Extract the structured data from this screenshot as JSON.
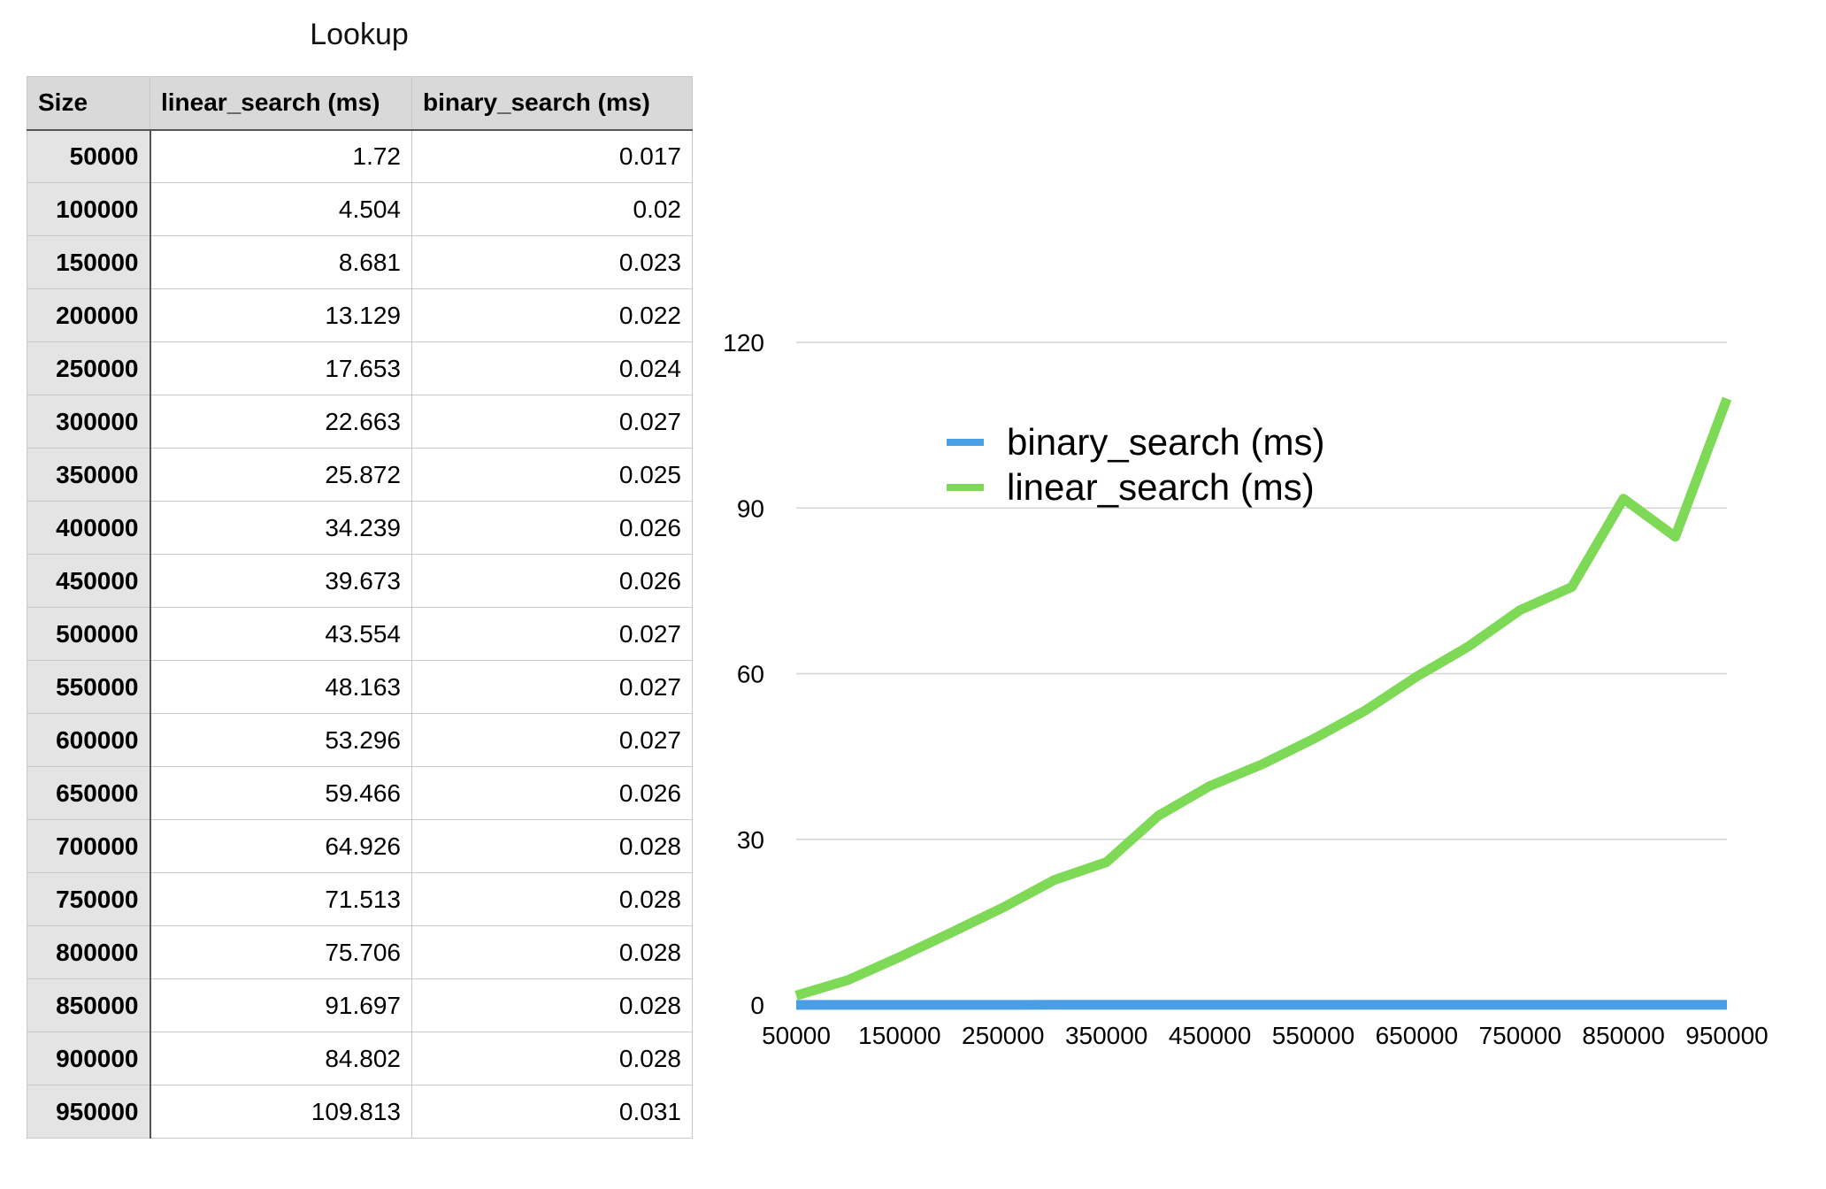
{
  "table": {
    "title": "Lookup",
    "headers": [
      "Size",
      "linear_search (ms)",
      "binary_search (ms)"
    ],
    "rows": [
      [
        "50000",
        "1.72",
        "0.017"
      ],
      [
        "100000",
        "4.504",
        "0.02"
      ],
      [
        "150000",
        "8.681",
        "0.023"
      ],
      [
        "200000",
        "13.129",
        "0.022"
      ],
      [
        "250000",
        "17.653",
        "0.024"
      ],
      [
        "300000",
        "22.663",
        "0.027"
      ],
      [
        "350000",
        "25.872",
        "0.025"
      ],
      [
        "400000",
        "34.239",
        "0.026"
      ],
      [
        "450000",
        "39.673",
        "0.026"
      ],
      [
        "500000",
        "43.554",
        "0.027"
      ],
      [
        "550000",
        "48.163",
        "0.027"
      ],
      [
        "600000",
        "53.296",
        "0.027"
      ],
      [
        "650000",
        "59.466",
        "0.026"
      ],
      [
        "700000",
        "64.926",
        "0.028"
      ],
      [
        "750000",
        "71.513",
        "0.028"
      ],
      [
        "800000",
        "75.706",
        "0.028"
      ],
      [
        "850000",
        "91.697",
        "0.028"
      ],
      [
        "900000",
        "84.802",
        "0.028"
      ],
      [
        "950000",
        "109.813",
        "0.031"
      ]
    ]
  },
  "chart_data": {
    "type": "line",
    "x": [
      50000,
      100000,
      150000,
      200000,
      250000,
      300000,
      350000,
      400000,
      450000,
      500000,
      550000,
      600000,
      650000,
      700000,
      750000,
      800000,
      850000,
      900000,
      950000
    ],
    "x_tick_labels": [
      "50000",
      "150000",
      "250000",
      "350000",
      "450000",
      "550000",
      "650000",
      "750000",
      "850000",
      "950000"
    ],
    "y_ticks": [
      0,
      30,
      60,
      90,
      120
    ],
    "ylim": [
      0,
      120
    ],
    "grid": true,
    "legend_position": "top-center",
    "series": [
      {
        "name": "binary_search (ms)",
        "color": "#4a9ee6",
        "values": [
          0.017,
          0.02,
          0.023,
          0.022,
          0.024,
          0.027,
          0.025,
          0.026,
          0.026,
          0.027,
          0.027,
          0.027,
          0.026,
          0.028,
          0.028,
          0.028,
          0.028,
          0.028,
          0.031
        ]
      },
      {
        "name": "linear_search (ms)",
        "color": "#7ed957",
        "values": [
          1.72,
          4.504,
          8.681,
          13.129,
          17.653,
          22.663,
          25.872,
          34.239,
          39.673,
          43.554,
          48.163,
          53.296,
          59.466,
          64.926,
          71.513,
          75.706,
          91.697,
          84.802,
          109.813
        ]
      }
    ]
  }
}
